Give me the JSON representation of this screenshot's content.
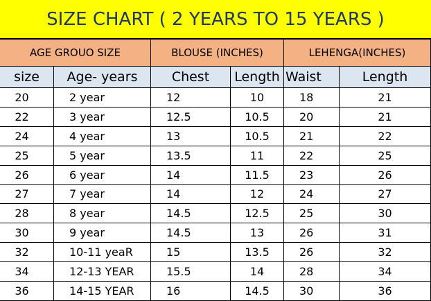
{
  "title": "SIZE CHART ( 2 YEARS TO 15 YEARS )",
  "group_headers": [
    "AGE GROUO SIZE",
    "BLOUSE (INCHES)",
    "LEHENGA(INCHES)"
  ],
  "columns": [
    "size",
    "Age- years",
    "Chest",
    "Length",
    "Waist",
    "Length"
  ],
  "rows": [
    [
      "20",
      "2 year",
      "12",
      "10",
      "18",
      "21"
    ],
    [
      "22",
      "3 year",
      "12.5",
      "10.5",
      "20",
      "21"
    ],
    [
      "24",
      "4 year",
      "13",
      "10.5",
      "21",
      "22"
    ],
    [
      "25",
      "5 year",
      "13.5",
      "11",
      "22",
      "25"
    ],
    [
      "26",
      "6 year",
      "14",
      "11.5",
      "23",
      "26"
    ],
    [
      "27",
      "7 year",
      "14",
      "12",
      "24",
      "27"
    ],
    [
      "28",
      "8 year",
      "14.5",
      "12.5",
      "25",
      "30"
    ],
    [
      "30",
      "9 year",
      "14.5",
      "13",
      "26",
      "31"
    ],
    [
      "32",
      "10-11 yeaR",
      "15",
      "13.5",
      "26",
      "32"
    ],
    [
      "34",
      "12-13 YEAR",
      "15.5",
      "14",
      "28",
      "34"
    ],
    [
      "36",
      "14-15 YEAR",
      "16",
      "14.5",
      "30",
      "36"
    ]
  ]
}
